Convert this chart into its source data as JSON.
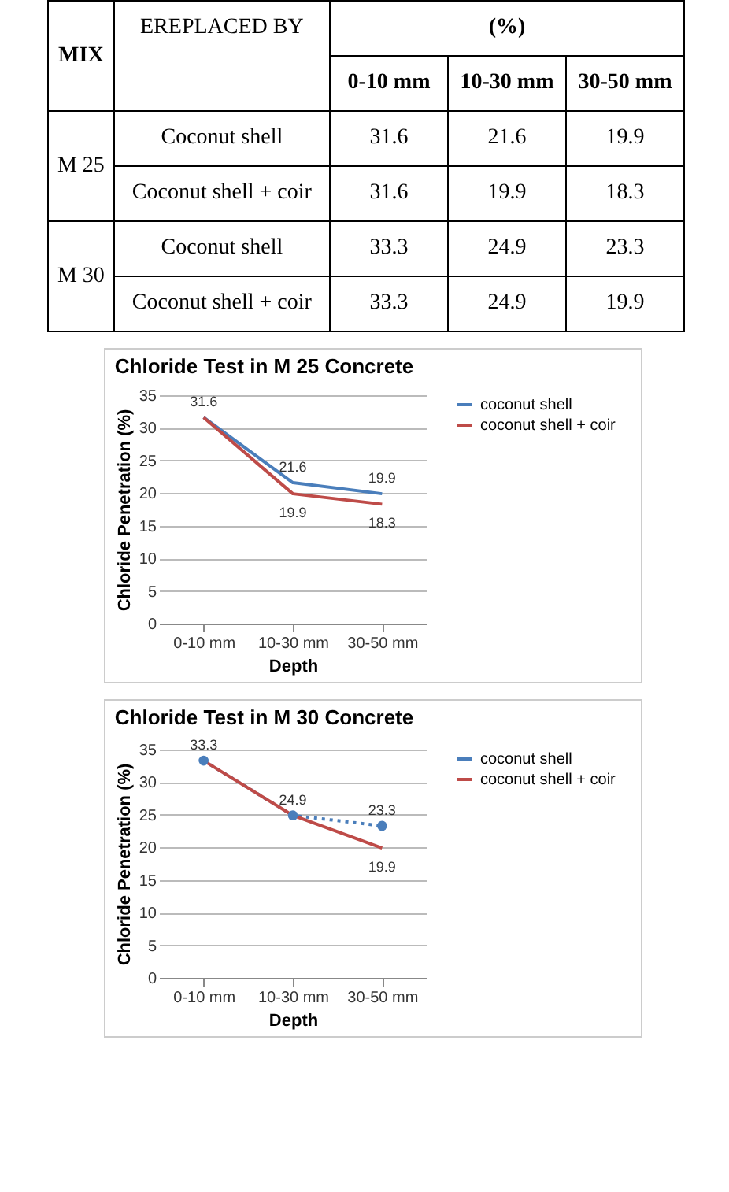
{
  "chart_data": [
    {
      "type": "other",
      "annotations": [
        "MIX",
        "EREPLACED BY",
        "(%)",
        "0-10 mm",
        "10-30 mm",
        "30-50 mm",
        "M 25",
        "Coconut shell",
        "31.6",
        "21.6",
        "19.9",
        "Coconut shell + coir",
        "31.6",
        "19.9",
        "18.3",
        "M 30",
        "Coconut shell",
        "33.3",
        "24.9",
        "23.3",
        "Coconut shell + coir",
        "33.3",
        "24.9",
        "19.9"
      ]
    },
    {
      "type": "line",
      "title": "Chloride Test in M 25 Concrete",
      "xlabel": "Depth",
      "ylabel": "Chloride Penetration (%)",
      "categories": [
        "0-10 mm",
        "10-30 mm",
        "30-50 mm"
      ],
      "ylim": [
        0,
        35
      ],
      "yticks": [
        0,
        5,
        10,
        15,
        20,
        25,
        30,
        35
      ],
      "grid": "y",
      "legend": "right",
      "series": [
        {
          "name": "coconut shell",
          "color": "#4a7ebb",
          "values": [
            31.6,
            21.6,
            19.9
          ],
          "value_labels": [
            "31.6",
            "21.6",
            "19.9"
          ]
        },
        {
          "name": "coconut shell + coir",
          "color": "#be4b48",
          "values": [
            31.6,
            19.9,
            18.3
          ],
          "value_labels": [
            null,
            "19.9",
            "18.3"
          ]
        }
      ]
    },
    {
      "type": "line",
      "title": "Chloride Test in M 30 Concrete",
      "xlabel": "Depth",
      "ylabel": "Chloride Penetration (%)",
      "categories": [
        "0-10 mm",
        "10-30 mm",
        "30-50 mm"
      ],
      "ylim": [
        0,
        35
      ],
      "yticks": [
        0,
        5,
        10,
        15,
        20,
        25,
        30,
        35
      ],
      "grid": "y",
      "legend": "right",
      "series": [
        {
          "name": "coconut shell",
          "color": "#4a7ebb",
          "marker": "circle",
          "line_style": "dotted",
          "values": [
            33.3,
            24.9,
            23.3
          ],
          "value_labels": [
            "33.3",
            "24.9",
            "23.3"
          ]
        },
        {
          "name": "coconut shell + coir",
          "color": "#be4b48",
          "values": [
            33.3,
            24.9,
            19.9
          ],
          "value_labels": [
            null,
            null,
            "19.9"
          ]
        }
      ]
    }
  ]
}
